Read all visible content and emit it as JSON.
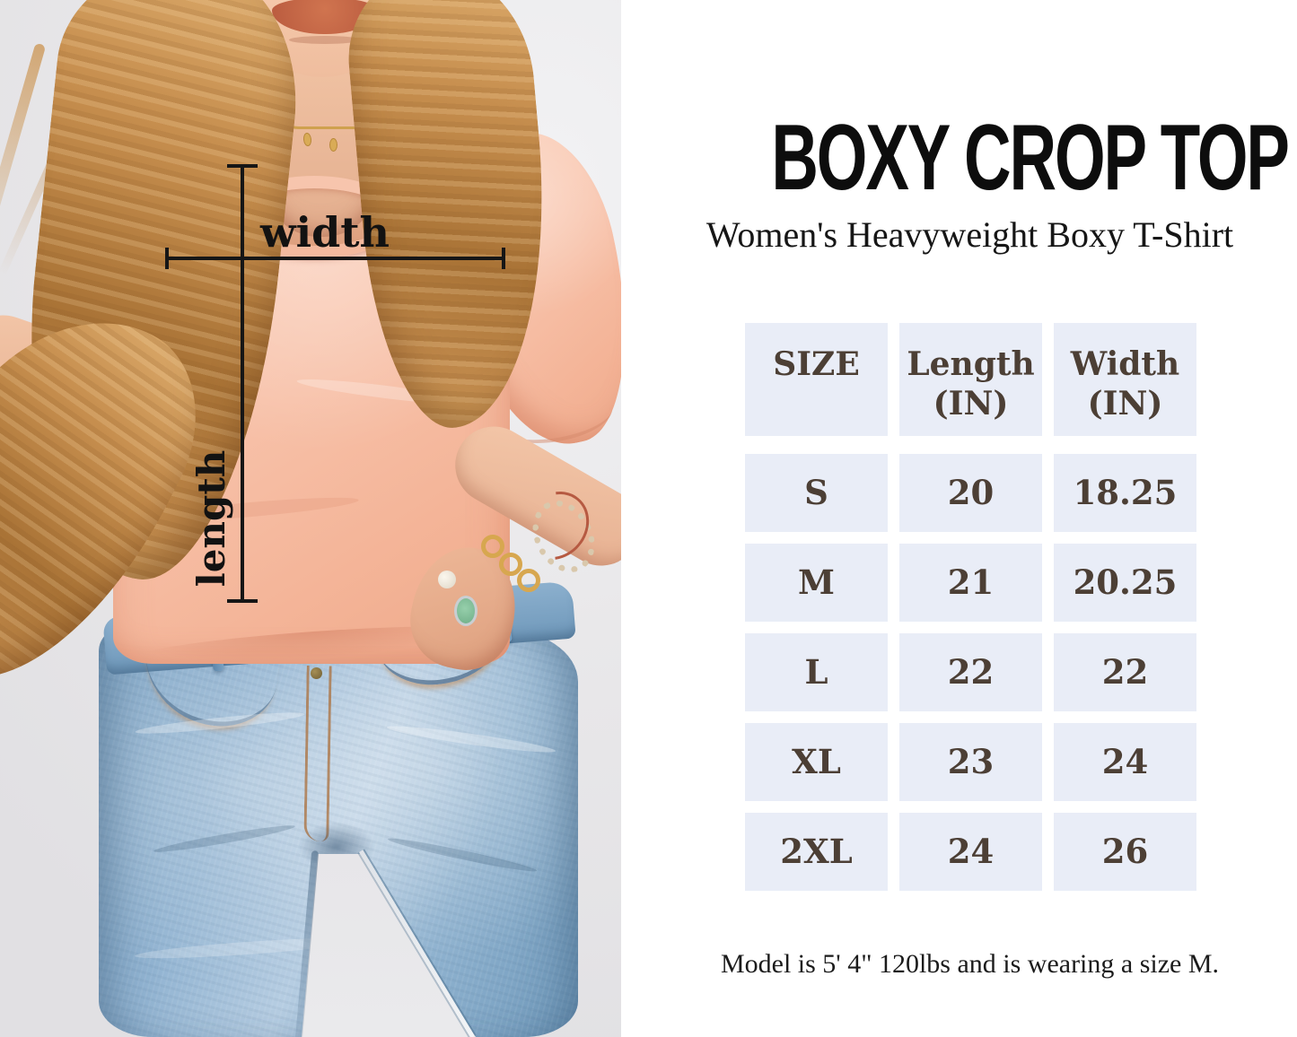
{
  "photo": {
    "measurement_labels": {
      "width": "width",
      "length": "length"
    }
  },
  "product": {
    "title": "BOXY CROP TOP",
    "subtitle": "Women's Heavyweight Boxy T-Shirt",
    "model_note": "Model is 5' 4\" 120lbs and is wearing a size M."
  },
  "size_table": {
    "columns": [
      {
        "label": "SIZE",
        "unit": ""
      },
      {
        "label": "Length",
        "unit": "(IN)"
      },
      {
        "label": "Width",
        "unit": "(IN)"
      }
    ],
    "rows": [
      {
        "size": "S",
        "length": "20",
        "width": "18.25"
      },
      {
        "size": "M",
        "length": "21",
        "width": "20.25"
      },
      {
        "size": "L",
        "length": "22",
        "width": "22"
      },
      {
        "size": "XL",
        "length": "23",
        "width": "24"
      },
      {
        "size": "2XL",
        "length": "24",
        "width": "26"
      }
    ]
  },
  "colors": {
    "table_cell_bg": "#e9edf7",
    "table_text": "#4c3f35",
    "heading_text": "#0d0d0d",
    "annotation_black": "#161616",
    "shirt_peach": "#f8c3ab",
    "jeans_blue": "#8fb0cd",
    "hair_gold": "#c08648"
  }
}
